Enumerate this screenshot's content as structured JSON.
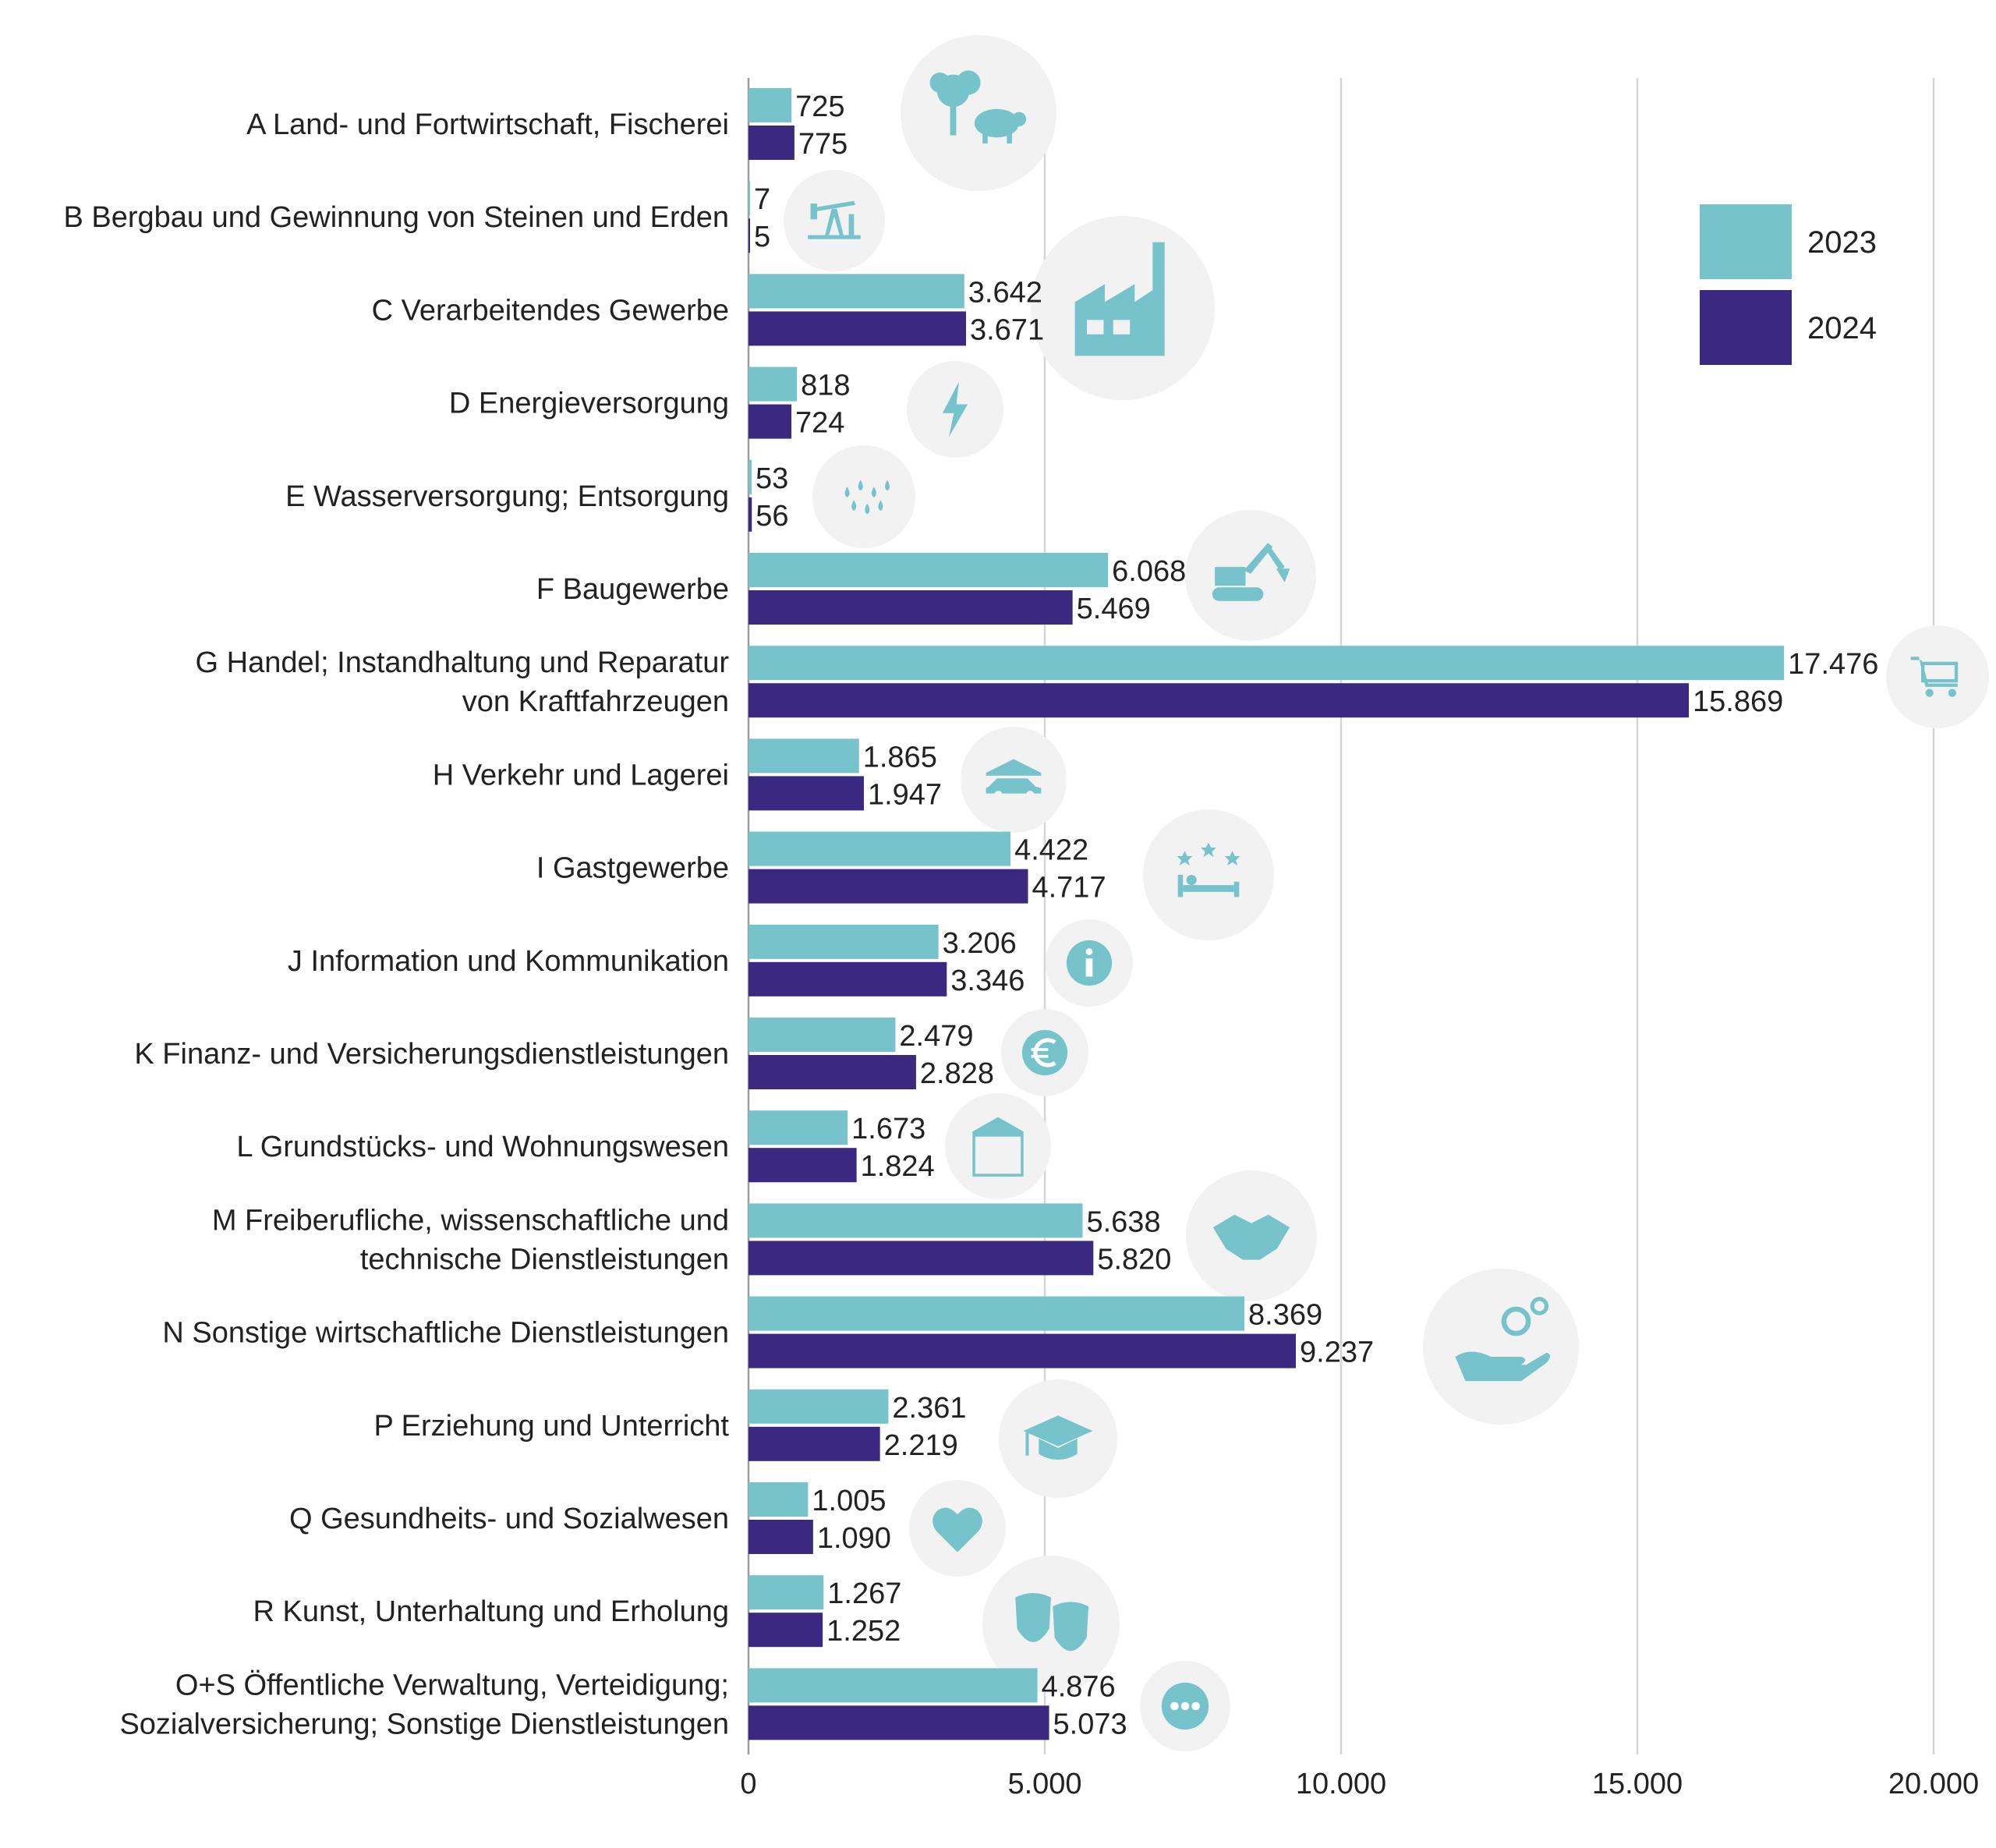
{
  "chart_data": {
    "type": "bar",
    "orientation": "horizontal",
    "title": "",
    "xlabel": "",
    "ylabel": "",
    "xlim": [
      0,
      20000
    ],
    "grid": true,
    "legend_position": "top-right",
    "x_ticks": [
      "0",
      "5.000",
      "10.000",
      "15.000",
      "20.000"
    ],
    "x_tick_values": [
      0,
      5000,
      10000,
      15000,
      20000
    ],
    "categories": [
      [
        "A Land- und Fortwirtschaft, Fischerei"
      ],
      [
        "B Bergbau und Gewinnung von Steinen und Erden"
      ],
      [
        "C Verarbeitendes Gewerbe"
      ],
      [
        "D Energieversorgung"
      ],
      [
        "E Wasserversorgung; Entsorgung"
      ],
      [
        "F Baugewerbe"
      ],
      [
        "G Handel; Instandhaltung und Reparatur",
        "von Kraftfahrzeugen"
      ],
      [
        "H Verkehr und Lagerei"
      ],
      [
        "I Gastgewerbe"
      ],
      [
        "J Information und Kommunikation"
      ],
      [
        "K Finanz- und Versicherungsdienstleistungen"
      ],
      [
        "L Grundstücks- und Wohnungswesen"
      ],
      [
        "M Freiberufliche, wissenschaftliche und",
        "technische Dienstleistungen"
      ],
      [
        "N Sonstige wirtschaftliche Dienstleistungen"
      ],
      [
        "P Erziehung und Unterricht"
      ],
      [
        "Q Gesundheits- und Sozialwesen"
      ],
      [
        "R Kunst, Unterhaltung und Erholung"
      ],
      [
        "O+S Öffentliche Verwaltung, Verteidigung;",
        "Sozialversicherung; Sonstige Dienstleistungen"
      ]
    ],
    "series": [
      {
        "name": "2023",
        "color": "#76c3cc",
        "values": [
          725,
          7,
          3642,
          818,
          53,
          6068,
          17476,
          1865,
          4422,
          3206,
          2479,
          1673,
          5638,
          8369,
          2361,
          1005,
          1267,
          4876
        ],
        "labels": [
          "725",
          "7",
          "3.642",
          "818",
          "53",
          "6.068",
          "17.476",
          "1.865",
          "4.422",
          "3.206",
          "2.479",
          "1.673",
          "5.638",
          "8.369",
          "2.361",
          "1.005",
          "1.267",
          "4.876"
        ]
      },
      {
        "name": "2024",
        "color": "#3b2880",
        "values": [
          775,
          5,
          3671,
          724,
          56,
          5469,
          15869,
          1947,
          4717,
          3346,
          2828,
          1824,
          5820,
          9237,
          2219,
          1090,
          1252,
          5073
        ],
        "labels": [
          "775",
          "5",
          "3.671",
          "724",
          "56",
          "5.469",
          "15.869",
          "1.947",
          "4.717",
          "3.346",
          "2.828",
          "1.824",
          "5.820",
          "9.237",
          "2.219",
          "1.090",
          "1.252",
          "5.073"
        ]
      }
    ],
    "icons": [
      "tree-pig-icon",
      "oil-pump-icon",
      "factory-icon",
      "lightning-icon",
      "water-drops-icon",
      "excavator-icon",
      "shopping-cart-icon",
      "car-garage-icon",
      "hotel-stars-bed-icon",
      "info-icon",
      "euro-icon",
      "house-icon",
      "handshake-icon",
      "hand-gears-icon",
      "graduation-cap-icon",
      "heart-icon",
      "theater-masks-icon",
      "more-dots-icon"
    ],
    "icon_bg_color": "#f2f2f2",
    "icon_color": "#76c3cc"
  }
}
